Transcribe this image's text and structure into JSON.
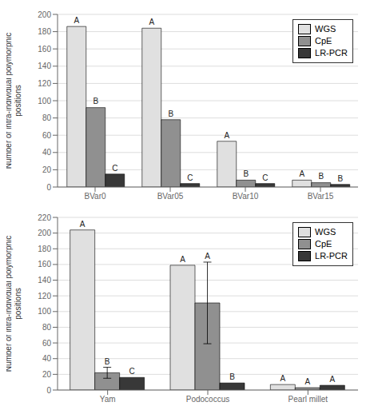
{
  "chart_data": [
    {
      "type": "bar",
      "categories": [
        "BVar0",
        "BVar05",
        "BVar10",
        "BVar15"
      ],
      "series": [
        {
          "name": "WGS",
          "color": "#e0e0e0",
          "values": [
            186,
            184,
            53,
            8
          ],
          "labels": [
            "A",
            "A",
            "A",
            "A"
          ]
        },
        {
          "name": "CpE",
          "color": "#909090",
          "values": [
            92,
            78,
            8,
            5
          ],
          "labels": [
            "B",
            "B",
            "B",
            "B"
          ]
        },
        {
          "name": "LR-PCR",
          "color": "#383838",
          "values": [
            15,
            4,
            4,
            3
          ],
          "labels": [
            "C",
            "C",
            "C",
            "B"
          ]
        }
      ],
      "ylim": [
        0,
        200
      ],
      "yticks": [
        0,
        20,
        40,
        60,
        80,
        100,
        120,
        140,
        160,
        180,
        200
      ],
      "ylabel": "Number of intra-individual polymorphic\npositions",
      "grid": true,
      "legend": "upper right"
    },
    {
      "type": "bar",
      "categories": [
        "Yam",
        "Podococcus",
        "Pearl millet"
      ],
      "series": [
        {
          "name": "WGS",
          "color": "#e0e0e0",
          "values": [
            204,
            159,
            7
          ],
          "labels": [
            "A",
            "A",
            "A"
          ],
          "errors": [
            0,
            0,
            0
          ]
        },
        {
          "name": "CpE",
          "color": "#909090",
          "values": [
            22,
            111,
            3
          ],
          "labels": [
            "B",
            "A",
            "A"
          ],
          "errors": [
            7,
            52,
            0
          ]
        },
        {
          "name": "LR-PCR",
          "color": "#383838",
          "values": [
            16,
            9,
            6
          ],
          "labels": [
            "C",
            "B",
            "A"
          ],
          "errors": [
            0,
            0,
            0
          ]
        }
      ],
      "ylim": [
        0,
        220
      ],
      "yticks": [
        0,
        20,
        40,
        60,
        80,
        100,
        120,
        140,
        160,
        180,
        200,
        220
      ],
      "ylabel": "Number of intra-individual polymorphic\npositions",
      "grid": true,
      "legend": "upper right"
    }
  ]
}
